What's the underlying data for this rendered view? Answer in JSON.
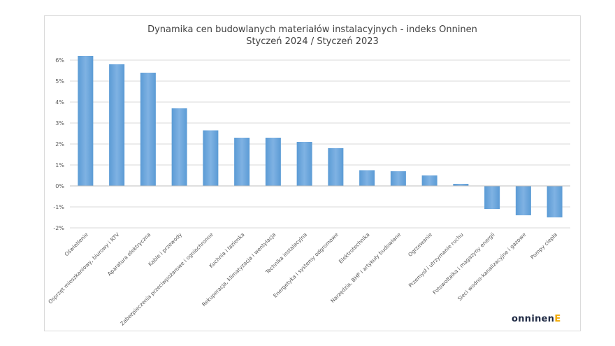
{
  "chart_data": {
    "type": "bar",
    "title": "Dynamika cen budowlanych materiałów instalacyjnych - indeks Onninen",
    "subtitle": "Styczeń 2024 / Styczeń 2023",
    "categories": [
      "Oświetlenie",
      "Osprzęt mieszkaniowy, biurowy i RTV",
      "Aparatura elektryczna",
      "Kable i przewody",
      "Zabezpieczenia przeciwpożarowe i ogniochronne",
      "Kuchnia i łazienka",
      "Rekuperacja, klimatyzacja i wentylacja",
      "Technika instalacyjna",
      "Energetyka i systemy odgromowe",
      "Elektrotechnika",
      "Narzędzia, BHP i artykuły budowlane",
      "Ogrzewanie",
      "Przemysł i utrzymanie ruchu",
      "Fotowoltaika i magazyny energii",
      "Sieci wodno-kanalizacyjne i gazowe",
      "Pompy ciepła"
    ],
    "values": [
      6.2,
      5.8,
      5.4,
      3.7,
      2.65,
      2.3,
      2.3,
      2.1,
      1.8,
      0.75,
      0.7,
      0.5,
      0.1,
      -1.1,
      -1.4,
      -1.5
    ],
    "ylim": [
      -2,
      6
    ],
    "yticks": [
      "6%",
      "5%",
      "4%",
      "3%",
      "2%",
      "1%",
      "0%",
      "-1%",
      "-2%"
    ],
    "grid": true,
    "colors": {
      "bar": "#5b9bd5",
      "bar_light": "#7fb2e3",
      "grid": "#d9d9d9",
      "text": "#595959"
    }
  },
  "logo": {
    "text": "onninen",
    "mark": "E"
  }
}
